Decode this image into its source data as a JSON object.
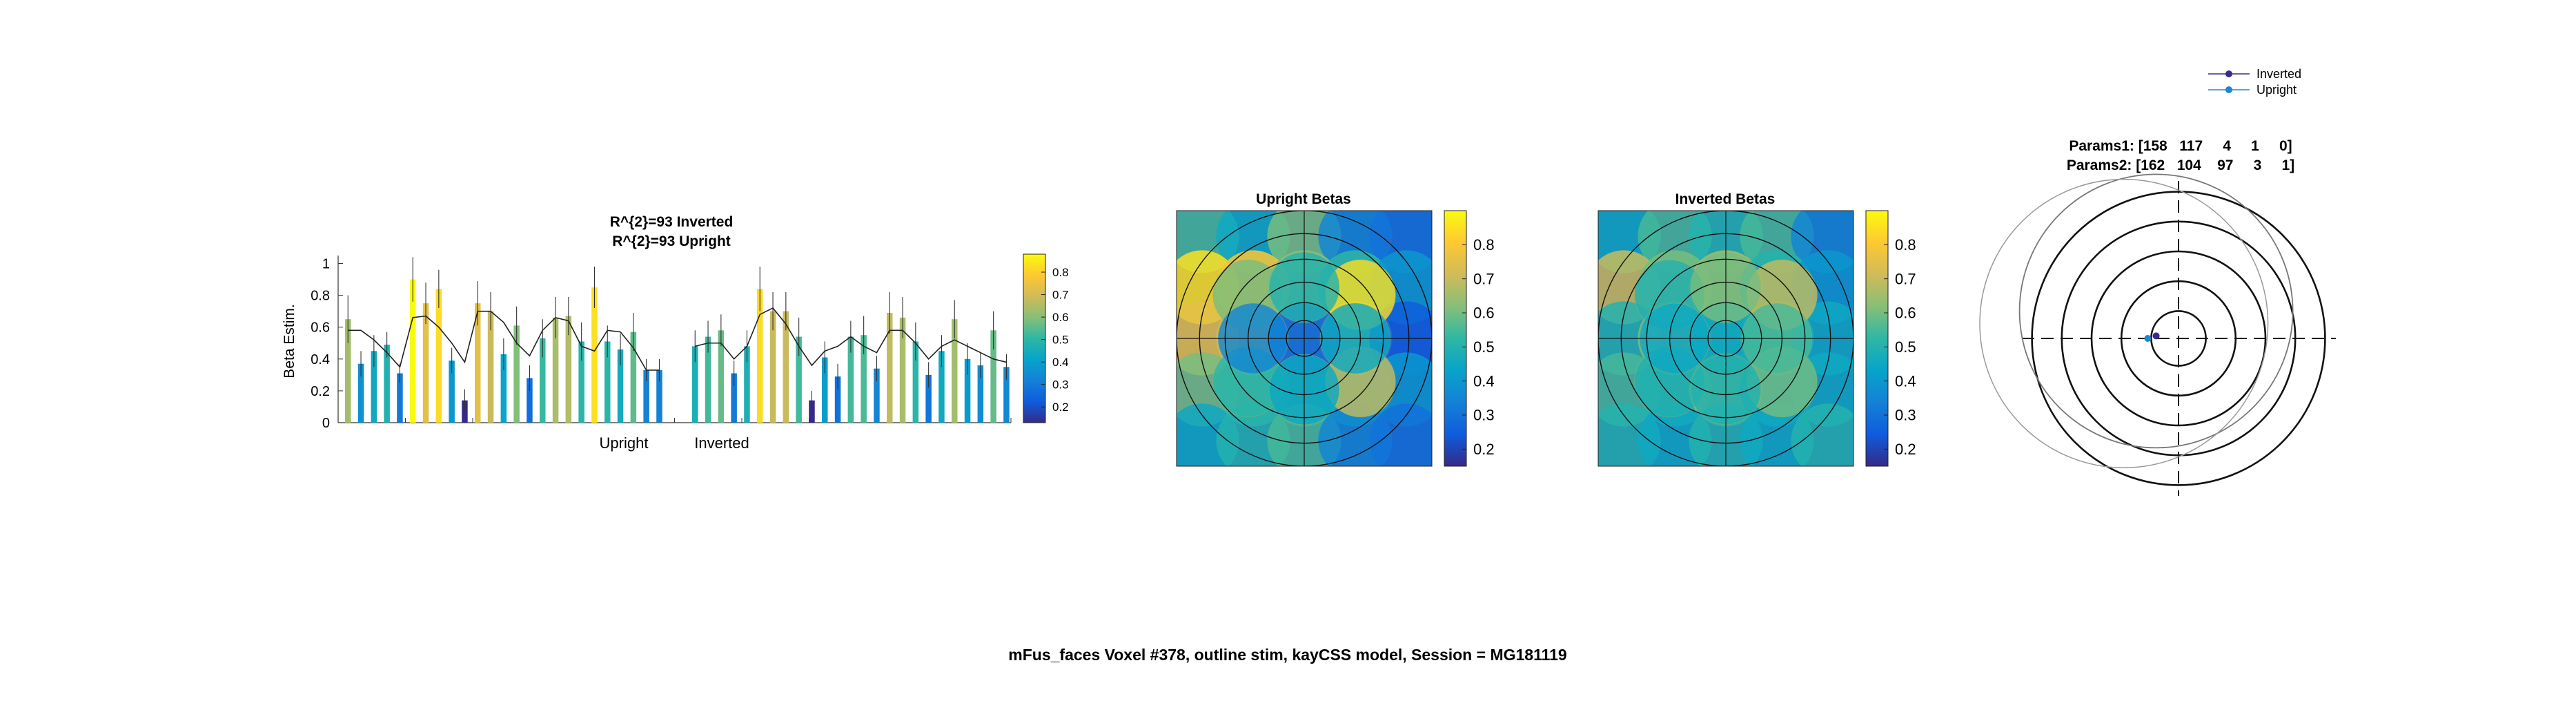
{
  "suptitle": "mFus_faces Voxel #378, outline stim, kayCSS model, Session = MG181119",
  "colors": {
    "parula": [
      "#352a87",
      "#0f5cdd",
      "#1481d6",
      "#06a4ca",
      "#2eb7a4",
      "#87bf77",
      "#d1bb59",
      "#fec832",
      "#f9fb0e"
    ],
    "model_line": "#222222",
    "errorbar": "#333333",
    "inverted_marker": "#3b2a8a",
    "upright_marker": "#1f86d0"
  },
  "chart_data": [
    {
      "type": "bar",
      "title": [
        "R^{2}=93 Inverted",
        "R^{2}=93 Upright"
      ],
      "ylabel": "Beta Estim.",
      "ylim": [
        0,
        1.05
      ],
      "yticks": [
        "0",
        "0.2",
        "0.4",
        "0.6",
        "0.8",
        "1"
      ],
      "group_labels": [
        "Upright",
        "Inverted"
      ],
      "colorbar_ticks": [
        "0.2",
        "0.3",
        "0.4",
        "0.5",
        "0.6",
        "0.7",
        "0.8"
      ],
      "clim": [
        0.14,
        0.9
      ],
      "series": [
        {
          "values": [
            0.65,
            0.37,
            0.45,
            0.49,
            0.31,
            0.9,
            0.75,
            0.84,
            0.39,
            0.14,
            0.75,
            0.7,
            0.43,
            0.61,
            0.28,
            0.53,
            0.66,
            0.67,
            0.51,
            0.85,
            0.51,
            0.46,
            0.57,
            0.33,
            0.33
          ],
          "errors": [
            0.15,
            0.08,
            0.1,
            0.08,
            0.06,
            0.14,
            0.13,
            0.12,
            0.08,
            0.07,
            0.14,
            0.12,
            0.1,
            0.12,
            0.08,
            0.12,
            0.13,
            0.12,
            0.12,
            0.13,
            0.1,
            0.1,
            0.12,
            0.07,
            0.07
          ],
          "model": [
            0.58,
            0.58,
            0.52,
            0.44,
            0.35,
            0.66,
            0.67,
            0.6,
            0.5,
            0.38,
            0.7,
            0.7,
            0.63,
            0.5,
            0.42,
            0.58,
            0.66,
            0.64,
            0.48,
            0.45,
            0.58,
            0.57,
            0.47,
            0.33,
            0.33
          ]
        },
        {
          "values": [
            0.48,
            0.54,
            0.58,
            0.31,
            0.48,
            0.84,
            0.7,
            0.7,
            0.54,
            0.14,
            0.41,
            0.29,
            0.54,
            0.55,
            0.34,
            0.69,
            0.66,
            0.51,
            0.3,
            0.45,
            0.65,
            0.4,
            0.36,
            0.58,
            0.35
          ],
          "errors": [
            0.1,
            0.1,
            0.1,
            0.08,
            0.1,
            0.14,
            0.12,
            0.12,
            0.12,
            0.06,
            0.1,
            0.08,
            0.1,
            0.12,
            0.08,
            0.13,
            0.13,
            0.12,
            0.08,
            0.1,
            0.12,
            0.1,
            0.08,
            0.12,
            0.08
          ],
          "model": [
            0.48,
            0.5,
            0.5,
            0.4,
            0.48,
            0.68,
            0.72,
            0.62,
            0.48,
            0.36,
            0.45,
            0.48,
            0.54,
            0.48,
            0.44,
            0.58,
            0.58,
            0.5,
            0.4,
            0.48,
            0.52,
            0.48,
            0.44,
            0.4,
            0.38
          ]
        }
      ]
    },
    {
      "type": "heatmap",
      "title": "Upright Betas",
      "colorbar_ticks": [
        "0.2",
        "0.3",
        "0.4",
        "0.5",
        "0.6",
        "0.7",
        "0.8"
      ],
      "clim": [
        0.15,
        0.9
      ],
      "note": "overlapping disc stimuli colored by beta, over 5 concentric rings"
    },
    {
      "type": "heatmap",
      "title": "Inverted Betas",
      "colorbar_ticks": [
        "0.2",
        "0.3",
        "0.4",
        "0.5",
        "0.6",
        "0.7",
        "0.8"
      ],
      "clim": [
        0.15,
        0.9
      ],
      "note": "overlapping disc stimuli colored by beta, over 5 concentric rings"
    },
    {
      "type": "scatter",
      "title": [
        "Params1: [158   117     4     1     0]",
        "Params2: [162   104    97     3     1]"
      ],
      "legend": [
        "Inverted",
        "Upright"
      ],
      "legend_position": "top-right",
      "points": {
        "Inverted": [
          [
            -0.45,
            0.05
          ]
        ],
        "Upright": [
          [
            -0.62,
            0.0
          ]
        ]
      },
      "rings": [
        0.55,
        1.15,
        1.75,
        2.35,
        2.95
      ]
    }
  ]
}
